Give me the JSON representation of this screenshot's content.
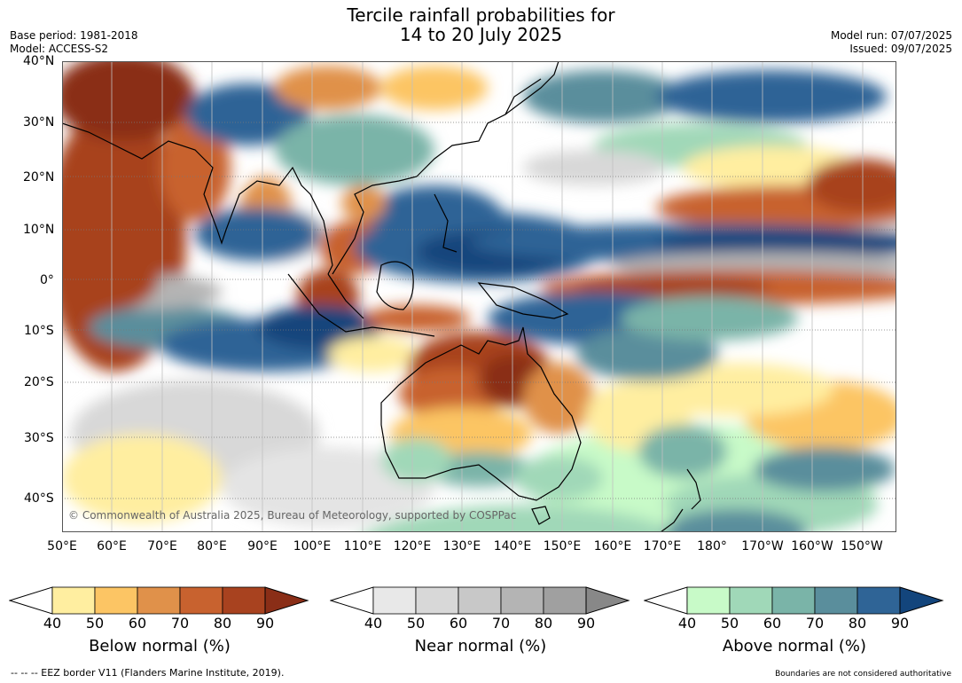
{
  "title": {
    "line1": "Tercile rainfall probabilities for",
    "line2": "14 to 20 July 2025"
  },
  "meta": {
    "base_period": "Base period: 1981-2018",
    "model": "Model: ACCESS-S2",
    "model_run": "Model run: 07/07/2025",
    "issued": "Issued: 09/07/2025"
  },
  "map": {
    "lat_labels": [
      "40°N",
      "30°N",
      "20°N",
      "10°N",
      "0°",
      "10°S",
      "20°S",
      "30°S",
      "40°S"
    ],
    "lon_labels": [
      "50°E",
      "60°E",
      "70°E",
      "80°E",
      "90°E",
      "100°E",
      "110°E",
      "120°E",
      "130°E",
      "140°E",
      "150°E",
      "160°E",
      "170°E",
      "180°",
      "170°W",
      "160°W",
      "150°W"
    ],
    "copyright": "© Commonwealth of Australia 2025, Bureau of Meteorology, supported by COSPPac"
  },
  "colorbars": [
    {
      "caption": "Below normal (%)",
      "ticks": [
        "40",
        "50",
        "60",
        "70",
        "80",
        "90"
      ],
      "colors": [
        "#ffeea0",
        "#fcc564",
        "#e0914a",
        "#c8622f",
        "#a8421f",
        "#8a2e17"
      ]
    },
    {
      "caption": "Near normal (%)",
      "ticks": [
        "40",
        "50",
        "60",
        "70",
        "80",
        "90"
      ],
      "colors": [
        "#e8e8e8",
        "#d8d8d8",
        "#c8c8c8",
        "#b4b4b4",
        "#a0a0a0",
        "#888888"
      ]
    },
    {
      "caption": "Above normal (%)",
      "ticks": [
        "40",
        "50",
        "60",
        "70",
        "80",
        "90"
      ],
      "colors": [
        "#c8fac8",
        "#a0d8b8",
        "#7ab4a8",
        "#5a8e9c",
        "#2f6496",
        "#13457c"
      ]
    }
  ],
  "footer": {
    "left": "--  --  -- EEZ border V11 (Flanders Marine Institute, 2019).",
    "right": "Boundaries are not considered authoritative"
  }
}
